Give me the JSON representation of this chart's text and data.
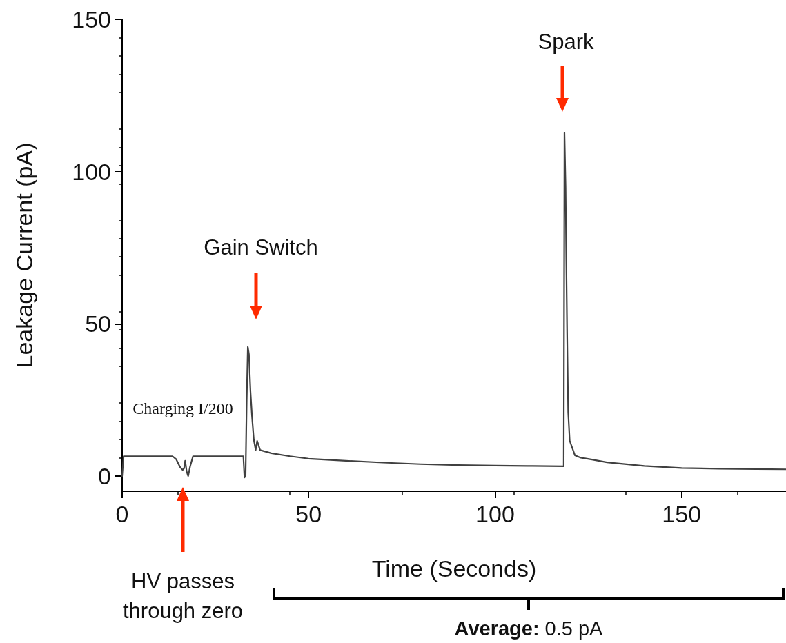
{
  "chart_data": {
    "type": "line",
    "xlabel": "Time (Seconds)",
    "ylabel": "Leakage Current (pA)",
    "x": [
      0,
      0.4,
      1,
      13.5,
      14.5,
      15.5,
      16.2,
      16.6,
      16.9,
      17.3,
      17.7,
      18.2,
      19,
      32.5,
      32.8,
      33.1,
      33.4,
      33.7,
      34.0,
      34.4,
      34.8,
      35.3,
      35.8,
      36.2,
      37,
      40,
      45,
      50,
      60,
      70,
      80,
      90,
      100,
      110,
      118.4,
      118.6,
      118.9,
      119.1,
      119.3,
      119.6,
      120,
      121.4,
      123,
      126,
      130,
      140,
      150,
      160,
      170,
      178
    ],
    "series": [
      {
        "color": "#404040",
        "values": [
          0,
          6.5,
          6.5,
          6.5,
          5.5,
          3,
          2,
          2.5,
          5,
          1.5,
          0,
          3,
          6.5,
          6.5,
          -0.5,
          0,
          25,
          42.4,
          40,
          28,
          20,
          12,
          8.5,
          11.5,
          8.5,
          7.5,
          6.5,
          5.7,
          5,
          4.4,
          3.9,
          3.6,
          3.4,
          3.3,
          3.2,
          112.7,
          94.8,
          70,
          48.3,
          21,
          11.6,
          6.8,
          6,
          5.4,
          4.5,
          3.3,
          2.6,
          2.4,
          2.3,
          2.2
        ]
      }
    ],
    "xlim": [
      0,
      178
    ],
    "xticks": [
      0,
      50,
      100,
      150
    ],
    "ylim": [
      -5,
      150
    ],
    "yticks": [
      0,
      50,
      100,
      150
    ],
    "grid": false,
    "marker": "none",
    "line_style": "solid",
    "annotations": [
      "Spark",
      "Gain Switch",
      "HV passes through zero",
      "Charging I/200",
      "Average: 0.5 pA"
    ]
  }
}
